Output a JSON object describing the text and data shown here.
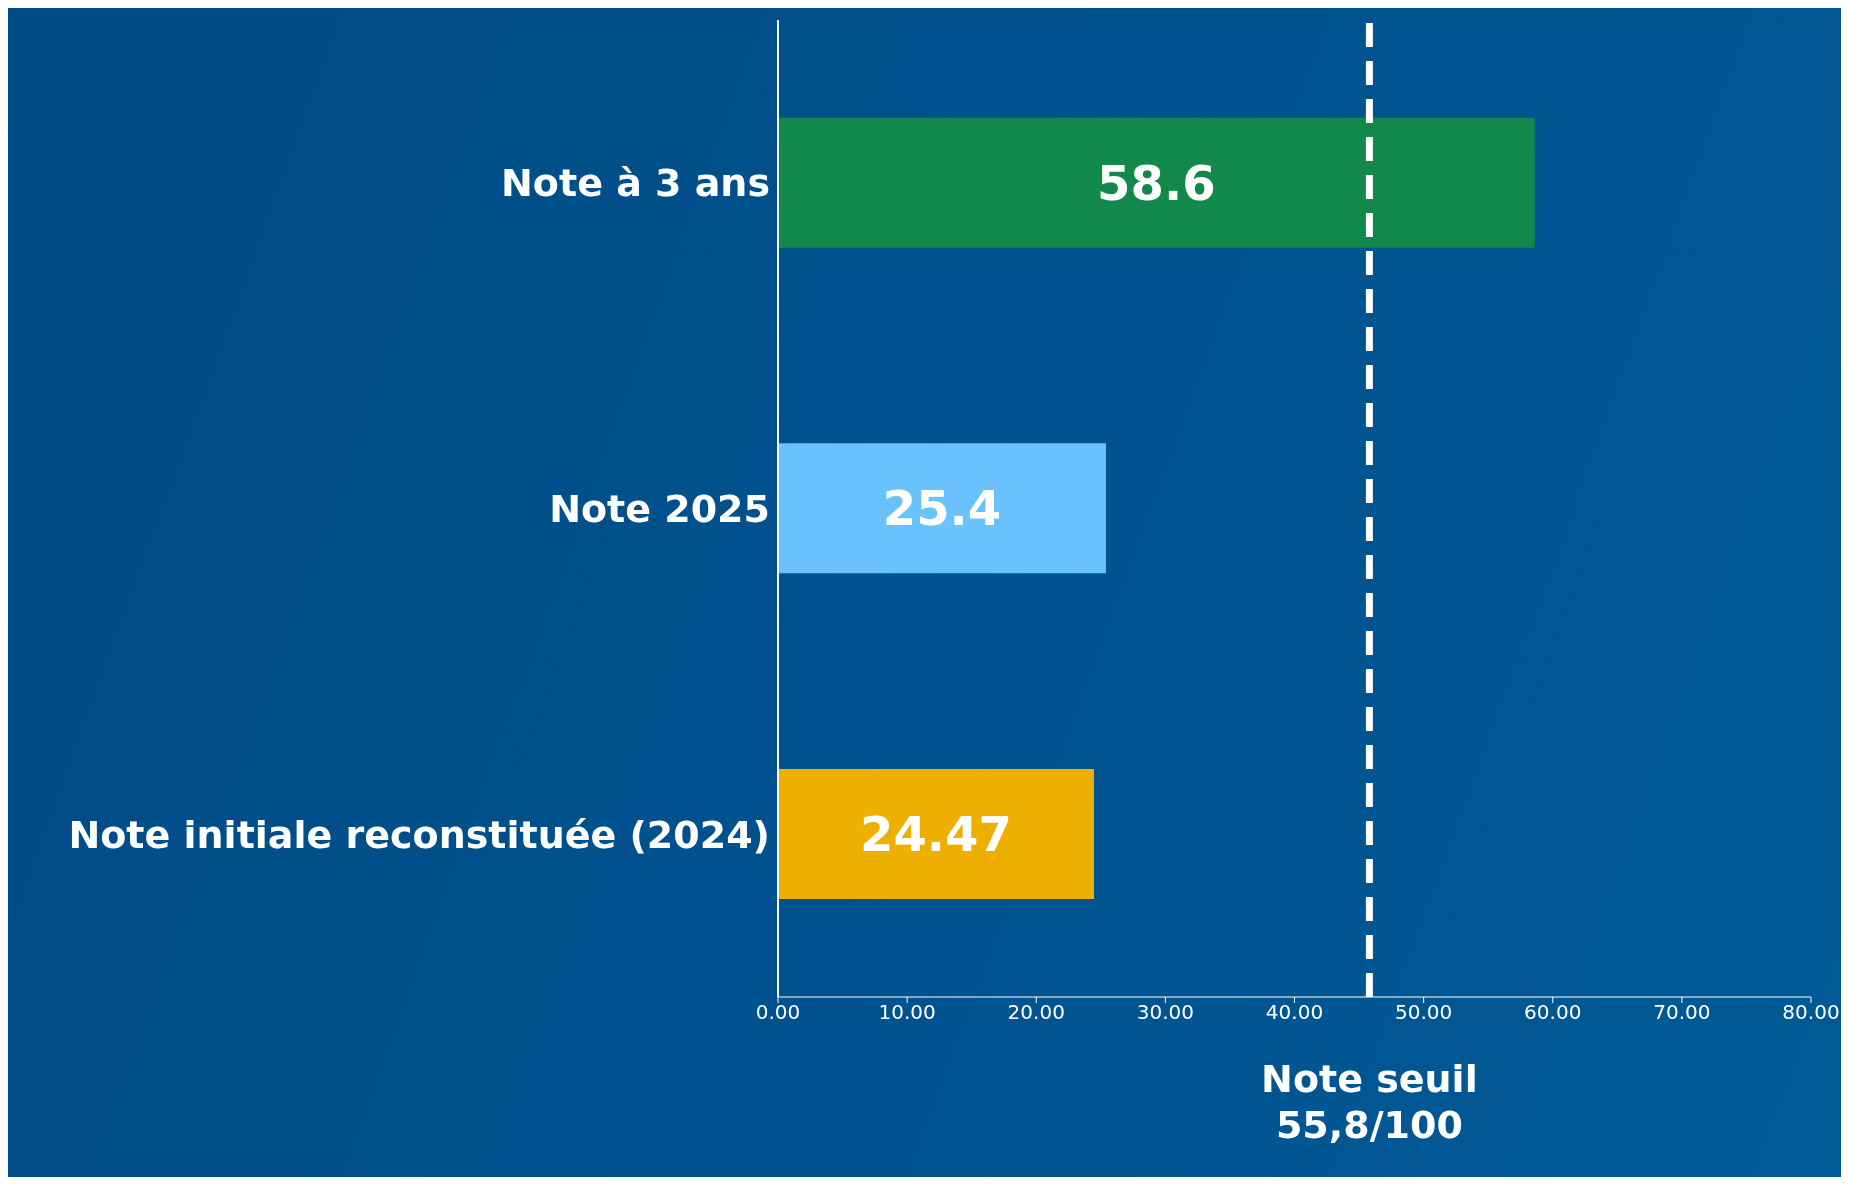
{
  "chart_data": {
    "type": "bar",
    "orientation": "horizontal",
    "categories": [
      "Note à 3 ans",
      "Note 2025",
      "Note initiale reconstituée (2024)"
    ],
    "values": [
      58.6,
      25.4,
      24.47
    ],
    "colors": [
      "#12884a",
      "#6ac2fc",
      "#eeb000"
    ],
    "xlim": [
      0,
      80
    ],
    "xticks": [
      {
        "value": 0,
        "label": "0.00"
      },
      {
        "value": 10,
        "label": "10.00"
      },
      {
        "value": 20,
        "label": "20.00"
      },
      {
        "value": 30,
        "label": "30.00"
      },
      {
        "value": 40,
        "label": "40.00"
      },
      {
        "value": 50,
        "label": "50.00"
      },
      {
        "value": 60,
        "label": "60.00"
      },
      {
        "value": 70,
        "label": "70.00"
      },
      {
        "value": 80,
        "label": "80.00"
      }
    ],
    "data_labels": true,
    "grid": false,
    "legend": false,
    "ref_lines": [
      {
        "axis": "x",
        "value": 45.8,
        "label": "Note seuil\n55,8/100",
        "color": "#ffffff",
        "line_style": "dashed"
      }
    ]
  }
}
